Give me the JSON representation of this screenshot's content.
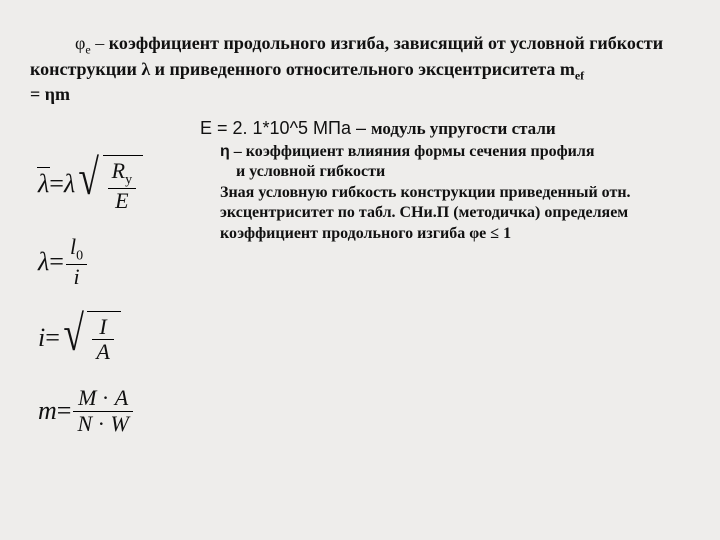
{
  "intro": {
    "indent": "          ",
    "phi_e": "φ",
    "phi_e_sub": "е",
    "dash": " – ",
    "line1_bold": "коэффициент продольного изгиба, зависящий от условной гибкости конструкции ",
    "lambda": "λ",
    "line1_bold2": " и приведенного относительного эксцентриситета ",
    "m": "m",
    "m_sub": "ef",
    "line2": " = ηm"
  },
  "modulus": {
    "lead": "Е = 2. 1*10^5 МПа – ",
    "desc": "модуль упругости стали"
  },
  "explain": {
    "eta": "η",
    "l1": " – коэффициент влияния формы сечения профиля",
    "l2": "    и условной гибкости",
    "l3": "Зная условную гибкость конструкции приведенный отн. эксцентриситет по табл. СНи.П (методичка) определяем коэффициент продольного изгиба φе ≤ 1"
  },
  "formulas": {
    "f1_lhs": "λ",
    "f1_eq": " = ",
    "f1_lambda": "λ",
    "f1_num": "R",
    "f1_numsub": "y",
    "f1_den": "E",
    "f2_lhs": "λ",
    "f2_eq": " = ",
    "f2_num": "l",
    "f2_numsub": "0",
    "f2_den": "i",
    "f3_lhs": "i",
    "f3_eq": " = ",
    "f3_num": "I",
    "f3_den": "A",
    "f4_lhs": "m",
    "f4_eq": " = ",
    "f4_num1": "M",
    "f4_num2": "A",
    "f4_den1": "N",
    "f4_den2": "W",
    "dot": " · "
  },
  "colors": {
    "bg": "#eeedeb",
    "text": "#111111"
  }
}
